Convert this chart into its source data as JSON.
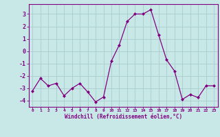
{
  "x": [
    0,
    1,
    2,
    3,
    4,
    5,
    6,
    7,
    8,
    9,
    10,
    11,
    12,
    13,
    14,
    15,
    16,
    17,
    18,
    19,
    20,
    21,
    22,
    23
  ],
  "y": [
    -3.2,
    -2.2,
    -2.8,
    -2.6,
    -3.6,
    -3.0,
    -2.6,
    -3.3,
    -4.1,
    -3.7,
    -0.8,
    0.5,
    2.4,
    3.0,
    3.0,
    3.35,
    1.3,
    -0.7,
    -1.6,
    -3.9,
    -3.5,
    -3.75,
    -2.8,
    -2.8
  ],
  "line_color": "#800080",
  "marker_color": "#800080",
  "bg_color": "#c8e8e8",
  "grid_color": "#aacccc",
  "xlabel": "Windchill (Refroidissement éolien,°C)",
  "xlim": [
    -0.5,
    23.5
  ],
  "ylim": [
    -4.5,
    3.8
  ],
  "yticks": [
    -4,
    -3,
    -2,
    -1,
    0,
    1,
    2,
    3
  ],
  "xticks": [
    0,
    1,
    2,
    3,
    4,
    5,
    6,
    7,
    8,
    9,
    10,
    11,
    12,
    13,
    14,
    15,
    16,
    17,
    18,
    19,
    20,
    21,
    22,
    23
  ],
  "tick_color": "#800080",
  "tick_label_color": "#800080",
  "axis_color": "#800080",
  "spine_color": "#800080"
}
